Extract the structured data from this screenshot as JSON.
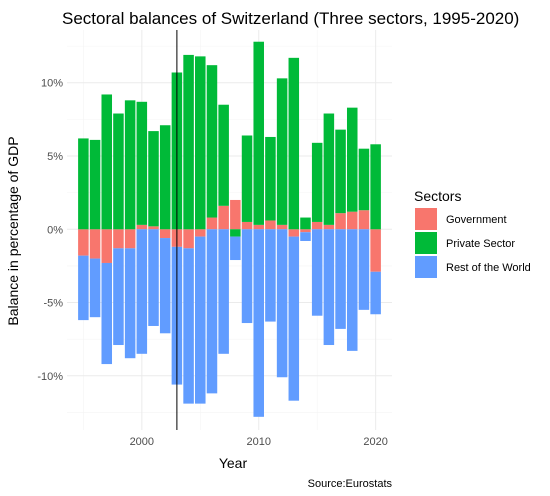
{
  "chart_data": {
    "type": "bar",
    "stacked": true,
    "title": "Sectoral balances of Switzerland (Three sectors, 1995-2020)",
    "xlabel": "Year",
    "ylabel": "Balance in percentage of GDP",
    "caption": "Source:Eurostats",
    "legend": {
      "title": "Sectors",
      "position": "right"
    },
    "grid": true,
    "xlim": [
      1993.6,
      2021.4
    ],
    "ylim": [
      -13.7,
      13.6
    ],
    "x_ticks": [
      2000,
      2010,
      2020
    ],
    "x_tick_labels": [
      "2000",
      "2010",
      "2020"
    ],
    "y_ticks": [
      -10,
      -5,
      0,
      5,
      10
    ],
    "y_tick_labels": [
      "-10%",
      "-5%",
      "0%",
      "5%",
      "10%"
    ],
    "x": [
      1995,
      1996,
      1997,
      1998,
      1999,
      2000,
      2001,
      2002,
      2003,
      2004,
      2005,
      2006,
      2007,
      2008,
      2009,
      2010,
      2011,
      2012,
      2013,
      2014,
      2015,
      2016,
      2017,
      2018,
      2019,
      2020
    ],
    "series": [
      {
        "name": "Government",
        "color": "#F8766D",
        "values": [
          -1.8,
          -2.0,
          -2.3,
          -1.3,
          -1.3,
          0.3,
          0.2,
          -0.6,
          -1.2,
          -1.3,
          -0.5,
          0.8,
          1.6,
          2.0,
          0.5,
          0.3,
          0.6,
          0.3,
          -0.5,
          -0.2,
          0.5,
          0.3,
          1.1,
          1.2,
          1.3,
          -2.9
        ]
      },
      {
        "name": "Private Sector",
        "color": "#00BA38",
        "values": [
          6.2,
          6.1,
          9.2,
          7.9,
          8.8,
          8.4,
          6.5,
          7.1,
          10.7,
          11.9,
          11.8,
          10.4,
          6.9,
          -0.5,
          5.9,
          12.5,
          5.7,
          10.0,
          11.7,
          0.8,
          5.4,
          7.6,
          5.7,
          7.1,
          4.2,
          5.8
        ]
      },
      {
        "name": "Rest of the World",
        "color": "#619CFF",
        "values": [
          -4.4,
          -4.0,
          -6.9,
          -6.6,
          -7.5,
          -8.5,
          -6.6,
          -6.5,
          -9.4,
          -10.6,
          -11.4,
          -11.2,
          -8.5,
          -1.6,
          -6.4,
          -12.8,
          -6.3,
          -10.1,
          -11.2,
          -0.6,
          -5.9,
          -7.9,
          -6.8,
          -8.3,
          -5.5,
          -2.9
        ]
      }
    ]
  }
}
